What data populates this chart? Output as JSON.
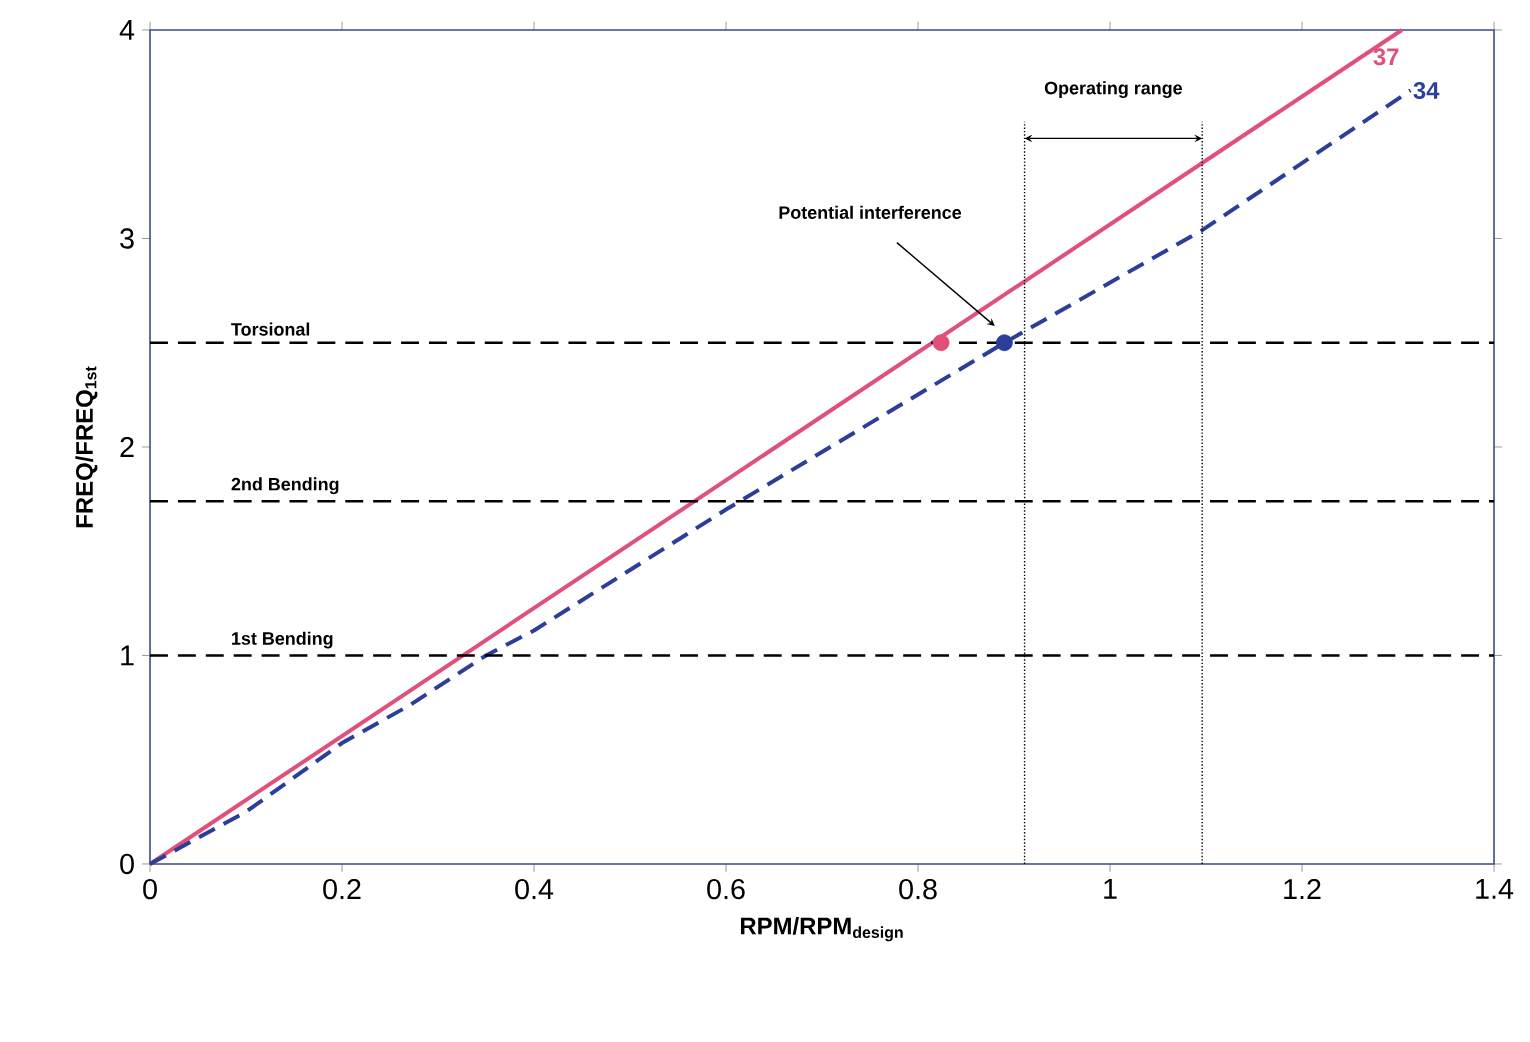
{
  "chart_data": {
    "type": "line",
    "xlabel": "RPM/RPM$_{design}$",
    "ylabel": "FREQ/FREQ$_{1st}$",
    "xlim": [
      0,
      1.4
    ],
    "ylim": [
      0,
      4
    ],
    "xticks": [
      0,
      0.2,
      0.4,
      0.6,
      0.8,
      1,
      1.2,
      1.4
    ],
    "yticks": [
      0,
      1,
      2,
      3,
      4
    ],
    "grid": false,
    "series": [
      {
        "name": "37",
        "color": "#e0507a",
        "line_style": "solid",
        "x": [
          0,
          1.304
        ],
        "values": [
          0,
          4
        ]
      },
      {
        "name": "34",
        "color": "#2b3f9a",
        "line_style": "dashed",
        "x": [
          0,
          0.1,
          0.2,
          0.27,
          0.35,
          0.4,
          0.6,
          0.89,
          1.096,
          1.313
        ],
        "values": [
          0,
          0.25,
          0.58,
          0.76,
          1.0,
          1.12,
          1.7,
          2.5,
          3.04,
          3.71
        ]
      },
      {
        "type": "scatter",
        "color": "#e0507a",
        "x": [
          0.824
        ],
        "values": [
          2.5
        ]
      },
      {
        "type": "scatter",
        "color": "#2b3f9a",
        "x": [
          0.89
        ],
        "values": [
          2.5
        ]
      }
    ],
    "ref_lines": [
      {
        "axis": "y",
        "value": 1.0,
        "label": "1st Bending",
        "line_style": "dashed",
        "color": "#000000"
      },
      {
        "axis": "y",
        "value": 1.74,
        "label": "2nd Bending",
        "line_style": "dashed",
        "color": "#000000"
      },
      {
        "axis": "y",
        "value": 2.5,
        "label": "Torsional",
        "line_style": "dashed",
        "color": "#000000"
      },
      {
        "axis": "x",
        "value": 0.911,
        "line_style": "dotted",
        "color": "#000000"
      },
      {
        "axis": "x",
        "value": 1.096,
        "line_style": "dotted",
        "color": "#000000"
      }
    ],
    "annotations": [
      "Operating range",
      "Potential interference"
    ]
  }
}
